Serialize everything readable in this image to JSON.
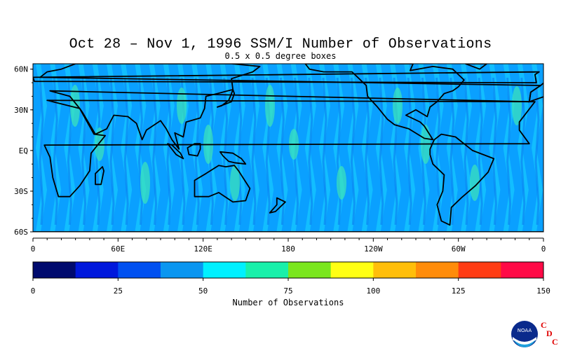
{
  "header": {
    "title": "Oct 28 – Nov 1, 1996 SSM/I Number of Observations",
    "subtitle": "0.5 x 0.5 degree boxes"
  },
  "map": {
    "lat_labels": [
      "60N",
      "30N",
      "EQ",
      "30S",
      "60S"
    ],
    "lon_labels": [
      "0",
      "60E",
      "120E",
      "180",
      "120W",
      "60W",
      "0"
    ],
    "ocean_colors": [
      "#0aa0ff",
      "#15c8ff",
      "#0a7cf0",
      "#29e3f2",
      "#3de6b8"
    ],
    "coast_color": "#000000"
  },
  "chart_data": {
    "type": "heatmap",
    "title": "Oct 28 – Nov 1, 1996 SSM/I Number of Observations",
    "subtitle": "0.5 x 0.5 degree boxes",
    "xlabel": "",
    "ylabel": "",
    "x_ticks": [
      "0",
      "60E",
      "120E",
      "180",
      "120W",
      "60W",
      "0"
    ],
    "y_ticks": [
      "60N",
      "30N",
      "EQ",
      "30S",
      "60S"
    ],
    "colorbar": {
      "label": "Number of Observations",
      "ticks": [
        "0",
        "25",
        "50",
        "75",
        "100",
        "125",
        "150"
      ],
      "range": [
        0,
        150
      ],
      "colors": [
        "#000a6e",
        "#0018dc",
        "#0050f0",
        "#0a96f0",
        "#00f0ff",
        "#19f0aa",
        "#7ae61e",
        "#ffff14",
        "#ffbe0a",
        "#ff8c0a",
        "#ff3c14",
        "#ff0a46"
      ]
    }
  },
  "logo": {
    "noaa_text": "NOAA",
    "cdc_letters": [
      "C",
      "D",
      "C"
    ],
    "cdc_color": "#e00000"
  }
}
